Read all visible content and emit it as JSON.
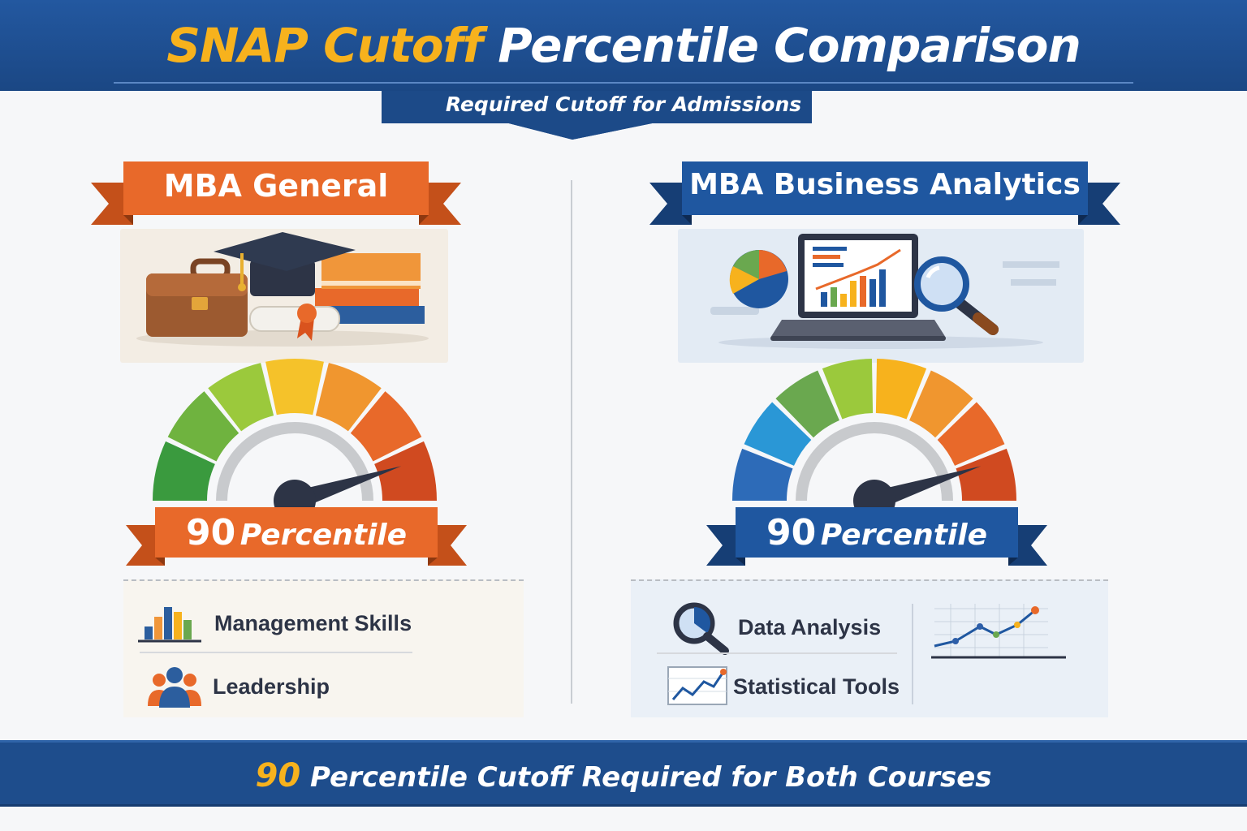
{
  "header": {
    "title_accent": "SNAP Cutoff",
    "title_rest": "Percentile Comparison",
    "subtitle": "Required Cutoff for Admissions"
  },
  "left_course": {
    "name": "MBA General",
    "percentile_value": "90",
    "percentile_label": "Percentile",
    "gauge_value_percent": 90,
    "ribbon_color": "#e8692a",
    "skills": [
      "Management Skills",
      "Leadership"
    ]
  },
  "right_course": {
    "name": "MBA Business Analytics",
    "percentile_value": "90",
    "percentile_label": "Percentile",
    "gauge_value_percent": 90,
    "ribbon_color": "#1f57a0",
    "skills": [
      "Data Analysis",
      "Statistical Tools"
    ]
  },
  "footer": {
    "number": "90",
    "text": "Percentile Cutoff Required for Both Courses"
  },
  "colors": {
    "navy": "#1e4d8c",
    "orange": "#e8692a",
    "gold": "#f7b21d"
  },
  "icons": {
    "left_illustration": "briefcase-graduation-cap-books-icon",
    "right_illustration": "laptop-analytics-magnifier-icon",
    "management": "bar-chart-icon",
    "leadership": "people-group-icon",
    "data_analysis": "magnifier-icon",
    "statistical_tools": "line-chart-icon"
  }
}
